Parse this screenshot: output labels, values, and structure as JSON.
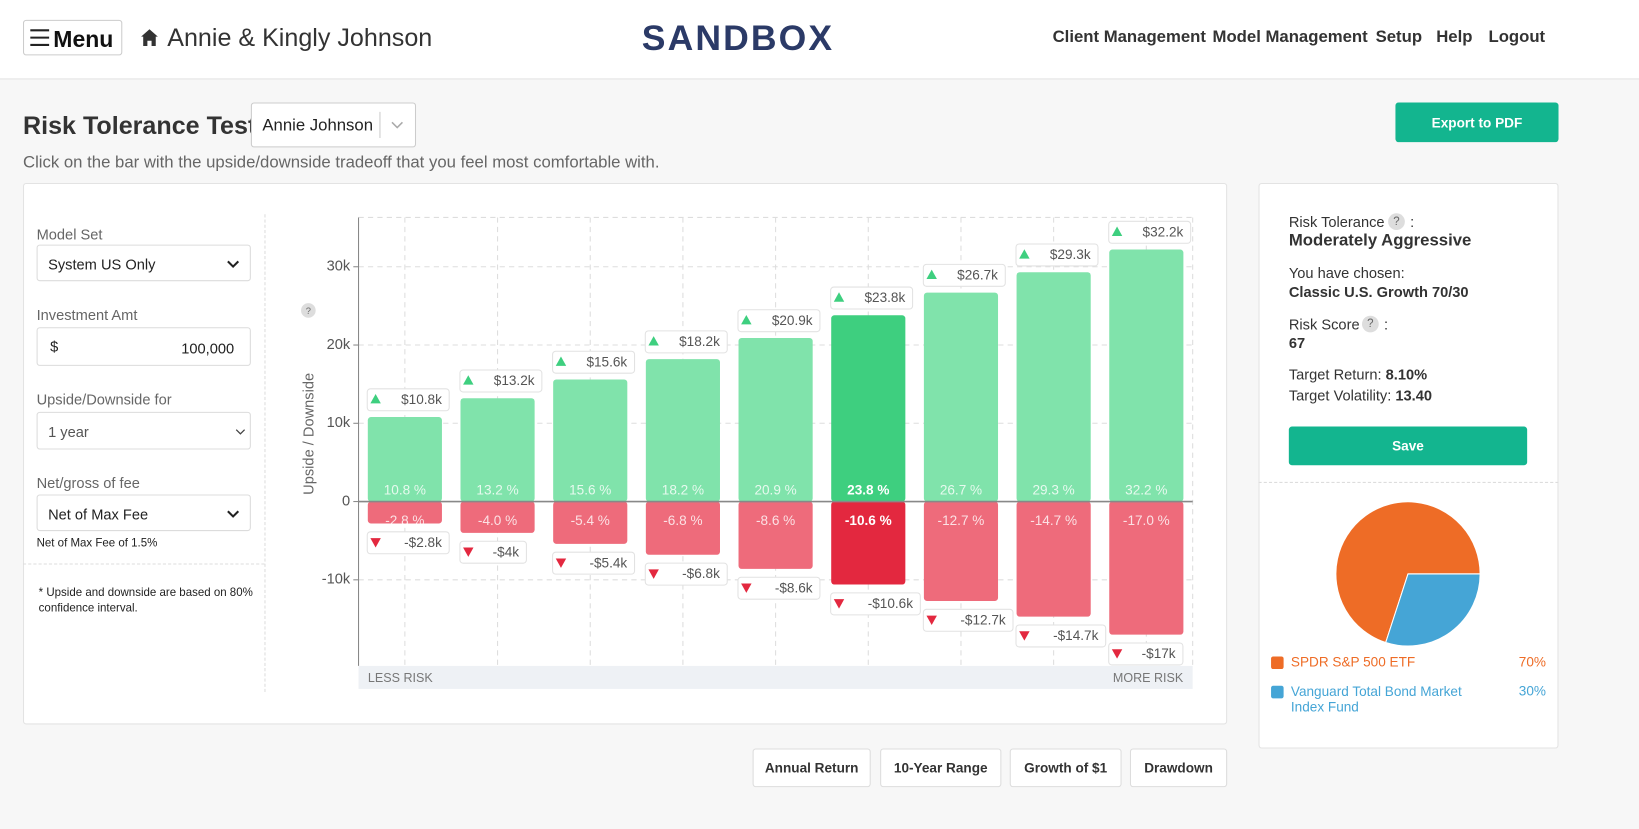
{
  "header": {
    "menu": "Menu",
    "client": "Annie & Kingly Johnson",
    "brand": "SANDBOX",
    "nav": [
      "Client Management",
      "Model Management",
      "Setup",
      "Help",
      "Logout"
    ]
  },
  "page": {
    "title": "Risk Tolerance Test:",
    "client_select": "Annie Johnson",
    "instruction": "Click on the bar with the upside/downside tradeoff that you feel most comfortable with.",
    "export_button": "Export to PDF"
  },
  "help_icon": "?",
  "label_colon": ":",
  "form": {
    "fields": [
      {
        "label": "Model Set",
        "value": "System US Only"
      },
      {
        "label": "Investment Amt",
        "prefix": "$",
        "value": "100,000"
      },
      {
        "label": "Upside/Downside for",
        "value": "1 year"
      },
      {
        "label": "Net/gross of fee",
        "value": "Net of Max Fee",
        "note": "Net of Max Fee of 1.5%"
      }
    ],
    "footnote": "* Upside and downside are based on 80% confidence interval."
  },
  "summary": {
    "risk_tolerance_label": "Risk Tolerance",
    "risk_tolerance": "Moderately Aggressive",
    "chosen_label": "You have chosen:",
    "chosen": "Classic U.S. Growth 70/30",
    "risk_score_label": "Risk Score",
    "risk_score": "67",
    "target_return_label": "Target Return:",
    "target_return": "8.10%",
    "target_volatility_label": "Target Volatility:",
    "target_volatility": "13.40",
    "save_button": "Save"
  },
  "view_buttons": [
    "Annual Return",
    "10-Year Range",
    "Growth of $1",
    "Drawdown"
  ],
  "chart_data": [
    {
      "type": "bar",
      "y_label": "Upside / Downside",
      "x_start_label": "LESS RISK",
      "x_end_label": "MORE RISK",
      "ylim": [
        -21000,
        36300
      ],
      "yticks": [
        {
          "value": -10000,
          "label": "-10k"
        },
        0,
        {
          "value": 10000,
          "label": "10k"
        },
        {
          "value": 20000,
          "label": "20k"
        },
        {
          "value": 30000,
          "label": "30k"
        }
      ],
      "grid": true,
      "selected": 5,
      "series": [
        {
          "color": "#80e3ab",
          "selected_color": "#3ecf7f",
          "values": [
            10800,
            13200,
            15600,
            18200,
            20900,
            23800,
            26700,
            29300,
            32200
          ],
          "value_labels": [
            "$10.8k",
            "$13.2k",
            "$15.6k",
            "$18.2k",
            "$20.9k",
            "$23.8k",
            "$26.7k",
            "$29.3k",
            "$32.2k"
          ]
        },
        {
          "color": "#ee6b7b",
          "selected_color": "#e3283f",
          "values": [
            -2800,
            -4000,
            -5400,
            -6800,
            -8600,
            -10600,
            -12700,
            -14700,
            -17000
          ],
          "value_labels": [
            "-$2.8k",
            "-$4k",
            "-$5.4k",
            "-$6.8k",
            "-$8.6k",
            "-$10.6k",
            "-$12.7k",
            "-$14.7k",
            "-$17k"
          ]
        }
      ],
      "upside_pct_labels": [
        "10.8 %",
        "13.2 %",
        "15.6 %",
        "18.2 %",
        "20.9 %",
        "23.8 %",
        "26.7 %",
        "29.3 %",
        "32.2 %"
      ],
      "downside_pct_labels": [
        "-2.8 %",
        "-4.0 %",
        "-5.4 %",
        "-6.8 %",
        "-8.6 %",
        "-10.6 %",
        "-12.7 %",
        "-14.7 %",
        "-17.0 %"
      ]
    },
    {
      "type": "pie",
      "categories": [
        "SPDR S&P 500 ETF",
        "Vanguard Total Bond Market Index Fund"
      ],
      "values": [
        70,
        30
      ],
      "value_labels": [
        "70%",
        "30%"
      ],
      "colors": [
        "#ee6c26",
        "#45a5d6"
      ]
    }
  ]
}
